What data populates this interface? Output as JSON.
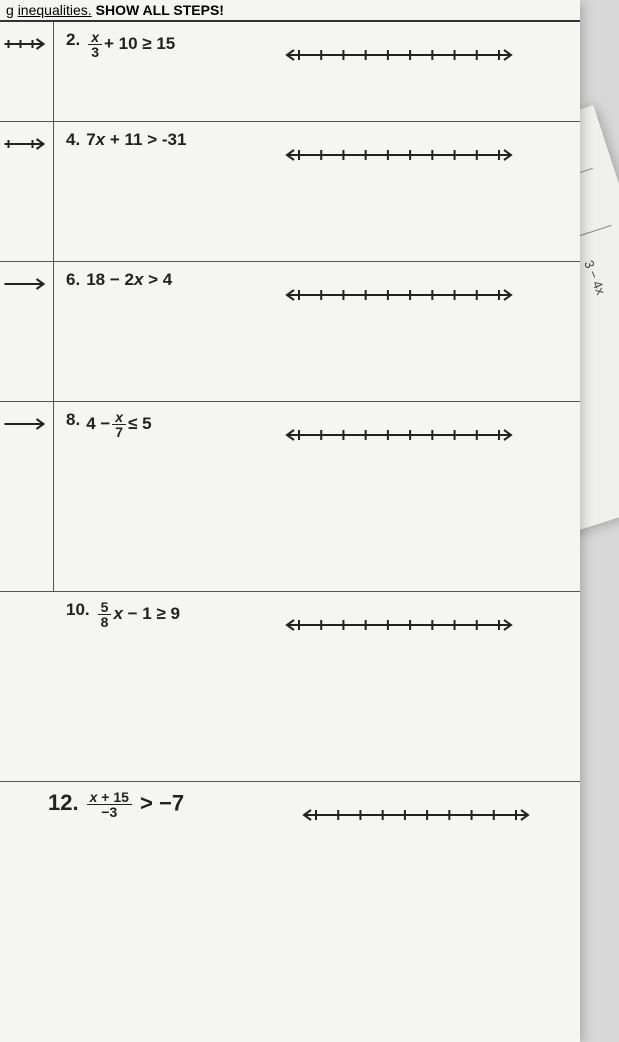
{
  "header": {
    "prefix": "g",
    "underlined": "inequalities.",
    "bold": "SHOW ALL STEPS!"
  },
  "problems": [
    {
      "num": "2.",
      "expr_html": "<span class='frac'><span class='n'><i>x</i></span><span class='d'>3</span></span>+ 10 ≥ 15",
      "height": "short",
      "stub_ticks": 3
    },
    {
      "num": "4.",
      "expr_html": "7<i>x</i> + 11 > -31",
      "height": "normal",
      "stub_ticks": 2
    },
    {
      "num": "6.",
      "expr_html": "18 − 2<i>x</i> > 4",
      "height": "normal",
      "stub_ticks": 0
    },
    {
      "num": "8.",
      "expr_html": "4 −<span class='frac'><span class='n'><i>x</i></span><span class='d'>7</span></span>≤ 5",
      "height": "tall",
      "stub_ticks": 0
    },
    {
      "num": "10.",
      "expr_html": "<span class='frac'><span class='n'>5</span><span class='d'>8</span></span><i>x</i> − 1 ≥ 9",
      "height": "tall",
      "stub_ticks": 0,
      "no_stub": true
    }
  ],
  "last_problem": {
    "num": "12.",
    "expr_html": "<span class='frac'><span class='n'><i>x</i> + 15</span><span class='d'>−3</span></span> > −7"
  },
  "numberline": {
    "ticks": 10,
    "stroke": "#222",
    "stroke_width": 2
  },
  "side_text": "3 − 4x",
  "colors": {
    "page_bg": "#f5f5f3",
    "body_bg": "#d8d8d8",
    "border": "#555",
    "text": "#222"
  }
}
